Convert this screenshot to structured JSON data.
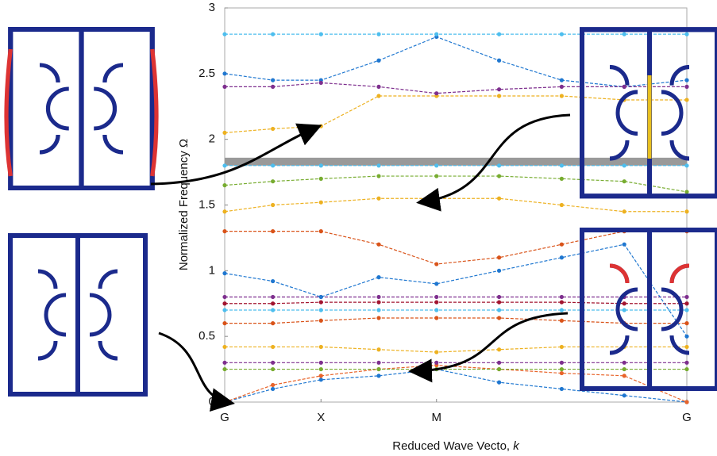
{
  "chart_data": {
    "type": "line",
    "xlabel": "Reduced Wave Vecto, ",
    "xlabel_var": "k",
    "ylabel": "Normalized Frequency Ω",
    "x": [
      0,
      0.5,
      1,
      1.6,
      2.2,
      2.85,
      3.5,
      4.15,
      4.8
    ],
    "xlim": [
      0,
      4.8
    ],
    "xticks": [
      {
        "value": 0,
        "label": "G"
      },
      {
        "value": 1,
        "label": "X"
      },
      {
        "value": 2.2,
        "label": "M"
      },
      {
        "value": 4.8,
        "label": "G"
      }
    ],
    "ylim": [
      0,
      3
    ],
    "yticks": [
      0,
      0.5,
      1,
      1.5,
      2,
      2.5,
      3
    ],
    "gap": [
      1.8,
      1.86
    ],
    "gap_color": "#999999",
    "series": [
      {
        "color": "#1f77d0",
        "values": [
          0,
          0.1,
          0.17,
          0.2,
          0.25,
          0.15,
          0.1,
          0.05,
          0
        ]
      },
      {
        "color": "#e8642a",
        "values": [
          0,
          0.13,
          0.2,
          0.25,
          0.28,
          0.25,
          0.22,
          0.2,
          0
        ]
      },
      {
        "color": "#77ac30",
        "values": [
          0.25,
          0.25,
          0.25,
          0.25,
          0.25,
          0.25,
          0.25,
          0.25,
          0.25
        ]
      },
      {
        "color": "#7e2f8e",
        "values": [
          0.3,
          0.3,
          0.3,
          0.3,
          0.3,
          0.3,
          0.3,
          0.3,
          0.3
        ]
      },
      {
        "color": "#edb120",
        "values": [
          0.42,
          0.42,
          0.42,
          0.4,
          0.38,
          0.4,
          0.42,
          0.42,
          0.42
        ]
      },
      {
        "color": "#d95319",
        "values": [
          0.6,
          0.6,
          0.62,
          0.64,
          0.64,
          0.64,
          0.62,
          0.6,
          0.6
        ]
      },
      {
        "color": "#4dbeee",
        "values": [
          0.7,
          0.7,
          0.7,
          0.7,
          0.7,
          0.7,
          0.7,
          0.7,
          0.7
        ]
      },
      {
        "color": "#a2142f",
        "values": [
          0.75,
          0.75,
          0.76,
          0.76,
          0.76,
          0.76,
          0.76,
          0.75,
          0.75
        ]
      },
      {
        "color": "#7e2f8e",
        "values": [
          0.8,
          0.8,
          0.8,
          0.8,
          0.8,
          0.8,
          0.8,
          0.8,
          0.8
        ]
      },
      {
        "color": "#1f77d0",
        "values": [
          0.98,
          0.92,
          0.8,
          0.95,
          0.9,
          1.0,
          1.1,
          1.2,
          0.5
        ]
      },
      {
        "color": "#d95319",
        "values": [
          1.3,
          1.3,
          1.3,
          1.2,
          1.05,
          1.1,
          1.2,
          1.3,
          1.3
        ]
      },
      {
        "color": "#edb120",
        "values": [
          1.45,
          1.5,
          1.52,
          1.55,
          1.55,
          1.55,
          1.5,
          1.45,
          1.45
        ]
      },
      {
        "color": "#77ac30",
        "values": [
          1.65,
          1.68,
          1.7,
          1.72,
          1.72,
          1.72,
          1.7,
          1.68,
          1.6
        ]
      },
      {
        "color": "#4dbeee",
        "values": [
          1.8,
          1.8,
          1.8,
          1.8,
          1.8,
          1.8,
          1.8,
          1.8,
          1.8
        ]
      },
      {
        "color": "#edb120",
        "values": [
          2.05,
          2.08,
          2.1,
          2.33,
          2.33,
          2.33,
          2.33,
          2.3,
          2.3
        ]
      },
      {
        "color": "#1f77d0",
        "values": [
          2.5,
          2.45,
          2.45,
          2.6,
          2.78,
          2.6,
          2.45,
          2.4,
          2.45
        ]
      },
      {
        "color": "#7e2f8e",
        "values": [
          2.4,
          2.4,
          2.43,
          2.4,
          2.35,
          2.38,
          2.4,
          2.4,
          2.4
        ]
      },
      {
        "color": "#4dbeee",
        "values": [
          2.8,
          2.8,
          2.8,
          2.8,
          2.8,
          2.8,
          2.8,
          2.8,
          2.8
        ]
      }
    ]
  }
}
